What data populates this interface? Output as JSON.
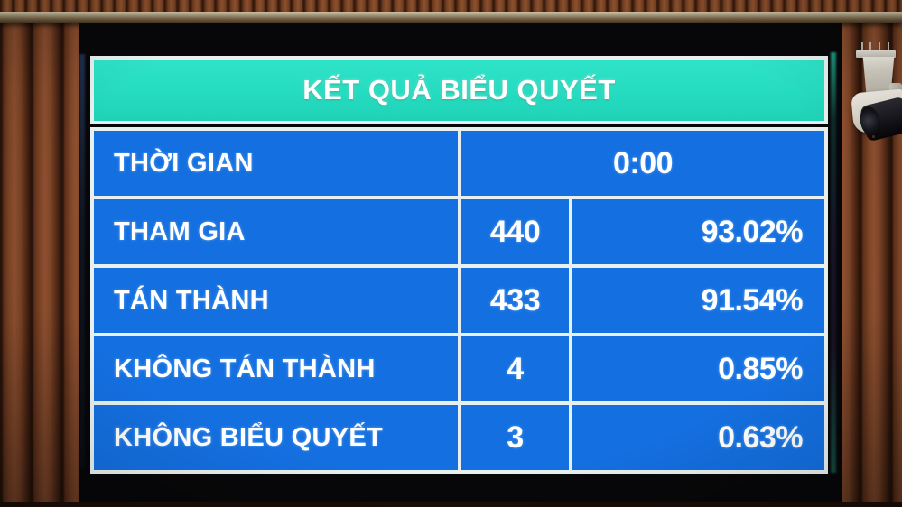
{
  "board": {
    "title": "KẾT QUẢ BIỂU QUYẾT",
    "rows": [
      {
        "label": "THỜI GIAN",
        "value": "0:00"
      },
      {
        "label": "THAM GIA",
        "value": "440",
        "percent": "93.02%"
      },
      {
        "label": "TÁN THÀNH",
        "value": "433",
        "percent": "91.54%"
      },
      {
        "label": "KHÔNG TÁN THÀNH",
        "value": "4",
        "percent": "0.85%"
      },
      {
        "label": "KHÔNG BIỂU QUYẾT",
        "value": "3",
        "percent": "0.63%"
      }
    ],
    "colors": {
      "header_bg": "#25DCC0",
      "cell_bg": "#146FE0",
      "grid_line": "#E8F0EF",
      "text": "#FFFFFF",
      "bezel": "#070709",
      "wood": "#7D4527"
    }
  },
  "scene": {
    "camera_icon": "security-camera-icon"
  }
}
